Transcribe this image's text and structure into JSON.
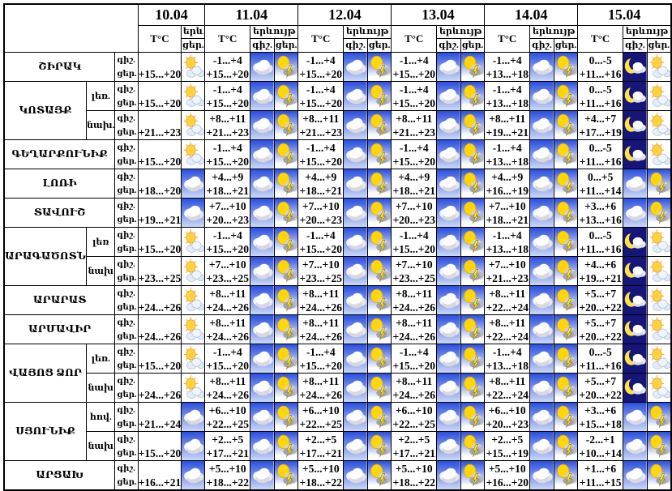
{
  "header": {
    "dates": [
      "10.04",
      "11.04",
      "12.04",
      "13.04",
      "14.04",
      "15.04"
    ],
    "temp_label": "T°C",
    "phenomenon_label": "երևույթ",
    "phenomenon_label_short": "երև",
    "night_abbr": "գիշ.",
    "day_abbr": "ցեր."
  },
  "icon_legend": {
    "sun-cloud": "sun behind cloud, white background",
    "cloud": "white cloud on blue sky background",
    "storm": "sun with dark cloud and lightning",
    "moon-cloud": "crescent moon with cloud, night sky"
  },
  "rows": [
    {
      "region": "ՇԻՐԱԿ",
      "rowspan": 1,
      "zone": null,
      "day1": {
        "d": "+15...+20",
        "di": "sun-cloud"
      },
      "days": [
        {
          "n": "-1...+4",
          "d": "+15...+20",
          "ni": "cloud",
          "di": "storm"
        },
        {
          "n": "-1...+4",
          "d": "+15...+20",
          "ni": "cloud",
          "di": "storm"
        },
        {
          "n": "-1...+4",
          "d": "+15...+20",
          "ni": "cloud",
          "di": "storm"
        },
        {
          "n": "-1...+4",
          "d": "+13...+18",
          "ni": "cloud",
          "di": "storm"
        },
        {
          "n": "0...-5",
          "d": "+11...+16",
          "ni": "moon-cloud",
          "di": "sun-cloud"
        }
      ]
    },
    {
      "region": "ԿՈՏԱՅՔ",
      "rowspan": 2,
      "zone": "լեռ.",
      "day1": {
        "d": "+15...+20",
        "di": "sun-cloud"
      },
      "days": [
        {
          "n": "-1...+4",
          "d": "+15...+20",
          "ni": "cloud",
          "di": "storm"
        },
        {
          "n": "-1...+4",
          "d": "+15...+20",
          "ni": "cloud",
          "di": "storm"
        },
        {
          "n": "-1...+4",
          "d": "+15...+20",
          "ni": "cloud",
          "di": "storm"
        },
        {
          "n": "-1...+4",
          "d": "+13...+18",
          "ni": "cloud",
          "di": "storm"
        },
        {
          "n": "0...-5",
          "d": "+11...+16",
          "ni": "moon-cloud",
          "di": "sun-cloud"
        }
      ]
    },
    {
      "region": null,
      "rowspan": 1,
      "zone": "նախ.",
      "day1": {
        "d": "+21...+23",
        "di": "sun-cloud"
      },
      "days": [
        {
          "n": "+8...+11",
          "d": "+21...+23",
          "ni": "cloud",
          "di": "storm"
        },
        {
          "n": "+8...+11",
          "d": "+21...+23",
          "ni": "cloud",
          "di": "storm"
        },
        {
          "n": "+8...+11",
          "d": "+21...+23",
          "ni": "cloud",
          "di": "storm"
        },
        {
          "n": "+8...+11",
          "d": "+19...+21",
          "ni": "cloud",
          "di": "storm"
        },
        {
          "n": "+4...+7",
          "d": "+17...+19",
          "ni": "moon-cloud",
          "di": "sun-cloud"
        }
      ]
    },
    {
      "region": "ԳԵՂԱՐՔՈՒՆԻՔ",
      "rowspan": 1,
      "zone": null,
      "day1": {
        "d": "+15...+20",
        "di": "sun-cloud"
      },
      "days": [
        {
          "n": "-1...+4",
          "d": "+15...+20",
          "ni": "cloud",
          "di": "storm"
        },
        {
          "n": "-1...+4",
          "d": "+15...+20",
          "ni": "cloud",
          "di": "storm"
        },
        {
          "n": "-1...+4",
          "d": "+15...+20",
          "ni": "cloud",
          "di": "storm"
        },
        {
          "n": "-1...+4",
          "d": "+13...+18",
          "ni": "cloud",
          "di": "storm"
        },
        {
          "n": "0...-5",
          "d": "+11...+16",
          "ni": "moon-cloud",
          "di": "sun-cloud"
        }
      ]
    },
    {
      "region": "ԼՈՌԻ",
      "rowspan": 1,
      "zone": null,
      "day1": {
        "d": "+18...+20",
        "di": "cloud"
      },
      "days": [
        {
          "n": "+4...+9",
          "d": "+18...+21",
          "ni": "cloud",
          "di": "storm"
        },
        {
          "n": "+4...+9",
          "d": "+18...+21",
          "ni": "cloud",
          "di": "storm"
        },
        {
          "n": "+4...+9",
          "d": "+18...+21",
          "ni": "cloud",
          "di": "storm"
        },
        {
          "n": "+4...+9",
          "d": "+16...+19",
          "ni": "cloud",
          "di": "storm"
        },
        {
          "n": "0...+5",
          "d": "+11...+14",
          "ni": "cloud",
          "di": "storm"
        }
      ]
    },
    {
      "region": "ՏԱՎՈՒՇ",
      "rowspan": 1,
      "zone": null,
      "day1": {
        "d": "+19...+21",
        "di": "cloud"
      },
      "days": [
        {
          "n": "+7...+10",
          "d": "+20...+23",
          "ni": "cloud",
          "di": "storm"
        },
        {
          "n": "+7...+10",
          "d": "+20...+23",
          "ni": "cloud",
          "di": "storm"
        },
        {
          "n": "+7...+10",
          "d": "+20...+23",
          "ni": "cloud",
          "di": "storm"
        },
        {
          "n": "+7...+10",
          "d": "+18...+21",
          "ni": "cloud",
          "di": "storm"
        },
        {
          "n": "+3...+6",
          "d": "+13...+16",
          "ni": "cloud",
          "di": "storm"
        }
      ]
    },
    {
      "region": "ԱՐԱԳԱԾՈՏՆ",
      "rowspan": 2,
      "zone": "լեռ",
      "day1": {
        "d": "+15...+20",
        "di": "sun-cloud"
      },
      "days": [
        {
          "n": "-1...+4",
          "d": "+15...+20",
          "ni": "cloud",
          "di": "storm"
        },
        {
          "n": "-1...+4",
          "d": "+15...+20",
          "ni": "cloud",
          "di": "storm"
        },
        {
          "n": "-1...+4",
          "d": "+15...+20",
          "ni": "cloud",
          "di": "storm"
        },
        {
          "n": "-1...+4",
          "d": "+13...+18",
          "ni": "cloud",
          "di": "storm"
        },
        {
          "n": "0...-5",
          "d": "+11...+16",
          "ni": "moon-cloud",
          "di": "sun-cloud"
        }
      ]
    },
    {
      "region": null,
      "rowspan": 1,
      "zone": "նախ",
      "day1": {
        "d": "+23...+25",
        "di": "sun-cloud"
      },
      "days": [
        {
          "n": "+7...+10",
          "d": "+23...+25",
          "ni": "cloud",
          "di": "storm"
        },
        {
          "n": "+7...+10",
          "d": "+23...+25",
          "ni": "cloud",
          "di": "storm"
        },
        {
          "n": "+7...+10",
          "d": "+23...+25",
          "ni": "cloud",
          "di": "storm"
        },
        {
          "n": "+7...+10",
          "d": "+21...+23",
          "ni": "cloud",
          "di": "storm"
        },
        {
          "n": "+4...+6",
          "d": "+19...+21",
          "ni": "moon-cloud",
          "di": "sun-cloud"
        }
      ]
    },
    {
      "region": "ԱՐԱՐԱՏ",
      "rowspan": 1,
      "zone": null,
      "day1": {
        "d": "+24...+26",
        "di": "sun-cloud"
      },
      "days": [
        {
          "n": "+8...+11",
          "d": "+24...+26",
          "ni": "cloud",
          "di": "storm"
        },
        {
          "n": "+8...+11",
          "d": "+24...+26",
          "ni": "cloud",
          "di": "storm"
        },
        {
          "n": "+8...+11",
          "d": "+24...+26",
          "ni": "cloud",
          "di": "storm"
        },
        {
          "n": "+8...+11",
          "d": "+22...+24",
          "ni": "cloud",
          "di": "storm"
        },
        {
          "n": "+5...+7",
          "d": "+20...+22",
          "ni": "moon-cloud",
          "di": "sun-cloud"
        }
      ]
    },
    {
      "region": "ԱՐՄԱՎԻՐ",
      "rowspan": 1,
      "zone": null,
      "day1": {
        "d": "+24...+26",
        "di": "sun-cloud"
      },
      "days": [
        {
          "n": "+8...+11",
          "d": "+24...+26",
          "ni": "cloud",
          "di": "storm"
        },
        {
          "n": "+8...+11",
          "d": "+24...+26",
          "ni": "cloud",
          "di": "storm"
        },
        {
          "n": "+8...+11",
          "d": "+24...+26",
          "ni": "cloud",
          "di": "storm"
        },
        {
          "n": "+8...+11",
          "d": "+22...+24",
          "ni": "cloud",
          "di": "storm"
        },
        {
          "n": "+5...+7",
          "d": "+20...+22",
          "ni": "moon-cloud",
          "di": "sun-cloud"
        }
      ]
    },
    {
      "region": "ՎԱՅՈՑ ՁՈՐ",
      "rowspan": 2,
      "zone": "լեռ.",
      "day1": {
        "d": "+15...+20",
        "di": "sun-cloud"
      },
      "days": [
        {
          "n": "-1...+4",
          "d": "+15...+20",
          "ni": "cloud",
          "di": "storm"
        },
        {
          "n": "-1...+4",
          "d": "+15...+20",
          "ni": "cloud",
          "di": "storm"
        },
        {
          "n": "-1...+4",
          "d": "+15...+20",
          "ni": "cloud",
          "di": "storm"
        },
        {
          "n": "-1...+4",
          "d": "+13...+18",
          "ni": "cloud",
          "di": "storm"
        },
        {
          "n": "0...-5",
          "d": "+11...+16",
          "ni": "moon-cloud",
          "di": "sun-cloud"
        }
      ]
    },
    {
      "region": null,
      "rowspan": 1,
      "zone": "նախ",
      "day1": {
        "d": "+24...+26",
        "di": "sun-cloud"
      },
      "days": [
        {
          "n": "+8...+11",
          "d": "+24...+26",
          "ni": "cloud",
          "di": "storm"
        },
        {
          "n": "+8...+11",
          "d": "+24...+26",
          "ni": "cloud",
          "di": "storm"
        },
        {
          "n": "+8...+11",
          "d": "+24...+26",
          "ni": "cloud",
          "di": "storm"
        },
        {
          "n": "+8...+11",
          "d": "+22...+24",
          "ni": "cloud",
          "di": "storm"
        },
        {
          "n": "+5...+7",
          "d": "+20...+22",
          "ni": "moon-cloud",
          "di": "sun-cloud"
        }
      ]
    },
    {
      "region": "ՍՅՈՒՆԻՔ",
      "rowspan": 2,
      "zone": "հով.",
      "day1": {
        "d": "+21...+24",
        "di": "cloud"
      },
      "days": [
        {
          "n": "+6...+10",
          "d": "+22...+25",
          "ni": "cloud",
          "di": "storm"
        },
        {
          "n": "+6...+10",
          "d": "+22...+25",
          "ni": "cloud",
          "di": "storm"
        },
        {
          "n": "+6...+10",
          "d": "+22...+25",
          "ni": "cloud",
          "di": "storm"
        },
        {
          "n": "+6...+10",
          "d": "+20...+23",
          "ni": "cloud",
          "di": "storm"
        },
        {
          "n": "+3...+6",
          "d": "+15...+18",
          "ni": "cloud",
          "di": "storm"
        }
      ]
    },
    {
      "region": null,
      "rowspan": 1,
      "zone": "նախ",
      "day1": {
        "d": "+15...+20",
        "di": "cloud"
      },
      "days": [
        {
          "n": "+2...+5",
          "d": "+17...+21",
          "ni": "cloud",
          "di": "storm"
        },
        {
          "n": "+2...+5",
          "d": "+17...+21",
          "ni": "cloud",
          "di": "storm"
        },
        {
          "n": "+2...+5",
          "d": "+17...+21",
          "ni": "cloud",
          "di": "storm"
        },
        {
          "n": "+2...+5",
          "d": "+15...+19",
          "ni": "cloud",
          "di": "storm"
        },
        {
          "n": "-2...+1",
          "d": "+10...+14",
          "ni": "cloud",
          "di": "storm"
        }
      ]
    },
    {
      "region": "ԱՐՑԱԽ",
      "rowspan": 1,
      "zone": null,
      "day1": {
        "d": "+16...+21",
        "di": "cloud"
      },
      "days": [
        {
          "n": "+5...+10",
          "d": "+18...+22",
          "ni": "cloud",
          "di": "storm"
        },
        {
          "n": "+5...+10",
          "d": "+18...+22",
          "ni": "cloud",
          "di": "storm"
        },
        {
          "n": "+5...+10",
          "d": "+18...+22",
          "ni": "cloud",
          "di": "storm"
        },
        {
          "n": "+5...+10",
          "d": "+16...+20",
          "ni": "cloud",
          "di": "storm"
        },
        {
          "n": "+1...+6",
          "d": "+11...+15",
          "ni": "cloud",
          "di": "storm"
        }
      ]
    }
  ]
}
